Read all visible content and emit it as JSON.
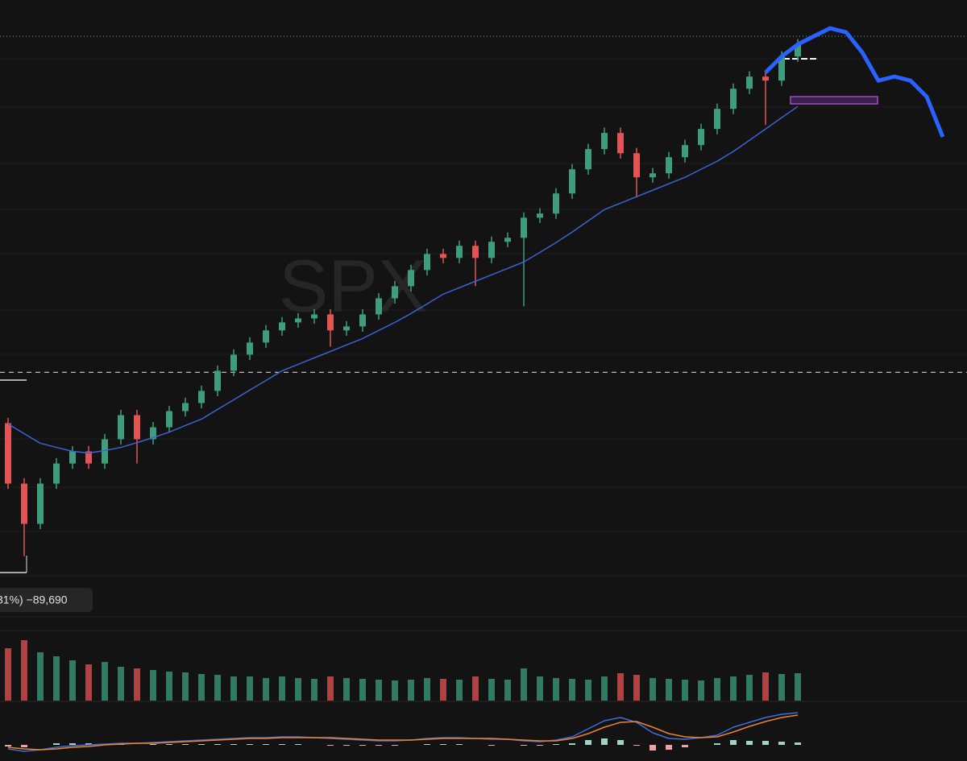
{
  "chart_data": {
    "type": "candlestick",
    "watermark": "SPX",
    "measure_label": "31%) −89,690",
    "ylim": [
      2020,
      6372
    ],
    "open": [
      3196,
      2742,
      2440,
      2742,
      2893,
      2984,
      2893,
      3075,
      3256,
      3075,
      3165,
      3286,
      3347,
      3438,
      3589,
      3710,
      3801,
      3892,
      3952,
      3982,
      4012,
      3892,
      3922,
      4012,
      4133,
      4224,
      4345,
      4466,
      4436,
      4527,
      4436,
      4557,
      4587,
      4738,
      4769,
      4920,
      5101,
      5253,
      5374,
      5222,
      5041,
      5071,
      5192,
      5283,
      5404,
      5555,
      5706,
      5797,
      5767,
      5948
    ],
    "high": [
      3236,
      2782,
      2782,
      2933,
      3024,
      3024,
      3115,
      3296,
      3296,
      3205,
      3326,
      3387,
      3478,
      3629,
      3750,
      3841,
      3932,
      3992,
      4022,
      4052,
      4052,
      3962,
      4052,
      4173,
      4264,
      4385,
      4506,
      4506,
      4567,
      4567,
      4597,
      4627,
      4778,
      4809,
      4960,
      5141,
      5293,
      5414,
      5414,
      5262,
      5111,
      5232,
      5323,
      5444,
      5595,
      5746,
      5837,
      5837,
      5988,
      6079
    ],
    "low": [
      2702,
      2197,
      2400,
      2702,
      2853,
      2853,
      2853,
      3035,
      2893,
      3035,
      3125,
      3246,
      3307,
      3398,
      3549,
      3670,
      3761,
      3852,
      3912,
      3942,
      3770,
      3852,
      3882,
      3972,
      4093,
      4184,
      4305,
      4396,
      4396,
      4224,
      4396,
      4517,
      4073,
      4698,
      4729,
      4880,
      5061,
      5213,
      5182,
      4890,
      5001,
      5031,
      5152,
      5243,
      5364,
      5515,
      5666,
      5434,
      5727,
      5908
    ],
    "close": [
      2742,
      2440,
      2742,
      2893,
      2984,
      2893,
      3075,
      3256,
      3075,
      3165,
      3286,
      3347,
      3438,
      3589,
      3710,
      3801,
      3892,
      3952,
      3982,
      4012,
      3892,
      3922,
      4012,
      4133,
      4224,
      4345,
      4466,
      4436,
      4527,
      4436,
      4557,
      4587,
      4738,
      4769,
      4920,
      5101,
      5253,
      5374,
      5222,
      5041,
      5071,
      5192,
      5283,
      5404,
      5555,
      5706,
      5797,
      5767,
      5948,
      6039
    ],
    "up_color": "#3f9d7e",
    "down_color": "#e15454",
    "moving_average": {
      "color": "#3b63d6",
      "values": [
        3190,
        3117,
        3045,
        3014,
        2984,
        2972,
        2990,
        3014,
        3050,
        3087,
        3129,
        3178,
        3226,
        3299,
        3371,
        3444,
        3516,
        3589,
        3637,
        3686,
        3734,
        3783,
        3831,
        3892,
        3952,
        4019,
        4091,
        4164,
        4212,
        4261,
        4309,
        4357,
        4406,
        4478,
        4551,
        4630,
        4714,
        4799,
        4847,
        4896,
        4944,
        4993,
        5041,
        5102,
        5162,
        5235,
        5319,
        5404,
        5489,
        5573
      ]
    },
    "projection": {
      "color": "#2962ff",
      "values": [
        null,
        null,
        null,
        null,
        null,
        null,
        null,
        null,
        null,
        null,
        null,
        null,
        null,
        null,
        null,
        null,
        null,
        null,
        null,
        null,
        null,
        null,
        null,
        null,
        null,
        null,
        null,
        null,
        null,
        null,
        null,
        null,
        null,
        null,
        null,
        null,
        null,
        null,
        null,
        null,
        null,
        null,
        null,
        null,
        null,
        null,
        null,
        5828,
        5948,
        6039,
        6100,
        6160,
        6130,
        5979,
        5767,
        5797,
        5767,
        5646,
        5344
      ]
    },
    "reference_lines": [
      {
        "value": 6100,
        "color": "#3f9d7e",
        "dash": "1 3"
      },
      {
        "value": 3577,
        "color": "#bbbbbb",
        "dash": "6 5"
      }
    ],
    "volume": {
      "ylim": [
        0,
        80
      ],
      "values": [
        65,
        75,
        60,
        55,
        50,
        45,
        48,
        42,
        40,
        38,
        36,
        35,
        33,
        32,
        30,
        30,
        28,
        30,
        28,
        27,
        30,
        28,
        27,
        26,
        25,
        26,
        28,
        27,
        26,
        30,
        27,
        26,
        40,
        30,
        28,
        27,
        26,
        30,
        34,
        32,
        28,
        27,
        26,
        25,
        28,
        30,
        32,
        35,
        33,
        34
      ]
    },
    "macd": {
      "ylim": [
        -20,
        50
      ],
      "macd_color": "#3b6fe0",
      "signal_color": "#f0812f",
      "macd": [
        -5,
        -8,
        -6,
        -3,
        -1,
        0,
        1,
        2,
        2,
        3,
        4,
        5,
        6,
        7,
        8,
        9,
        9,
        10,
        10,
        9,
        8,
        7,
        6,
        5,
        5,
        6,
        8,
        9,
        9,
        8,
        7,
        7,
        5,
        4,
        6,
        10,
        20,
        30,
        34,
        28,
        15,
        8,
        7,
        9,
        12,
        22,
        28,
        34,
        38,
        40
      ],
      "signal": [
        -3,
        -5,
        -6,
        -5,
        -3,
        -2,
        0,
        1,
        2,
        2,
        3,
        4,
        5,
        6,
        7,
        8,
        8,
        9,
        9,
        9,
        9,
        8,
        7,
        6,
        6,
        6,
        7,
        8,
        8,
        8,
        8,
        7,
        6,
        5,
        5,
        8,
        14,
        22,
        28,
        29,
        22,
        14,
        10,
        9,
        10,
        16,
        23,
        29,
        34,
        37
      ],
      "histogram": [
        -2,
        -3,
        0,
        2,
        2,
        2,
        1,
        1,
        0,
        1,
        1,
        1,
        1,
        1,
        1,
        1,
        1,
        1,
        1,
        0,
        -1,
        -1,
        -1,
        -1,
        -1,
        0,
        1,
        1,
        1,
        0,
        -1,
        0,
        -1,
        -1,
        1,
        2,
        6,
        8,
        6,
        -1,
        -7,
        -6,
        -3,
        0,
        2,
        6,
        5,
        5,
        4,
        3
      ]
    }
  }
}
